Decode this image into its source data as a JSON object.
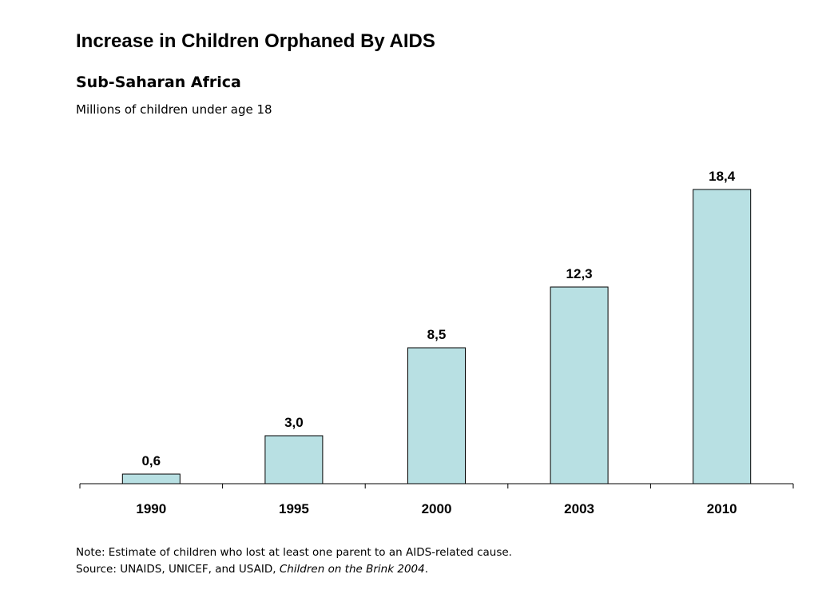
{
  "chart_data": {
    "type": "bar",
    "title": "Increase in Children Orphaned By AIDS",
    "subtitle": "Sub-Saharan Africa",
    "ylabel": "Millions of children under age 18",
    "xlabel": "",
    "categories": [
      "1990",
      "1995",
      "2000",
      "2003",
      "2010"
    ],
    "values": [
      0.6,
      3.0,
      8.5,
      12.3,
      18.4
    ],
    "value_labels": [
      "0,6",
      "3,0",
      "8,5",
      "12,3",
      "18,4"
    ],
    "ylim": [
      0,
      20
    ],
    "grid": false,
    "bar_color": "#b8e0e3",
    "bar_outline_color": "#000000"
  },
  "footer": {
    "note": "Note: Estimate of children who lost at least one parent to an AIDS-related cause.",
    "source_prefix": "Source: UNAIDS, UNICEF, and USAID, ",
    "source_title": "Children on the Brink 2004",
    "source_suffix": "."
  }
}
